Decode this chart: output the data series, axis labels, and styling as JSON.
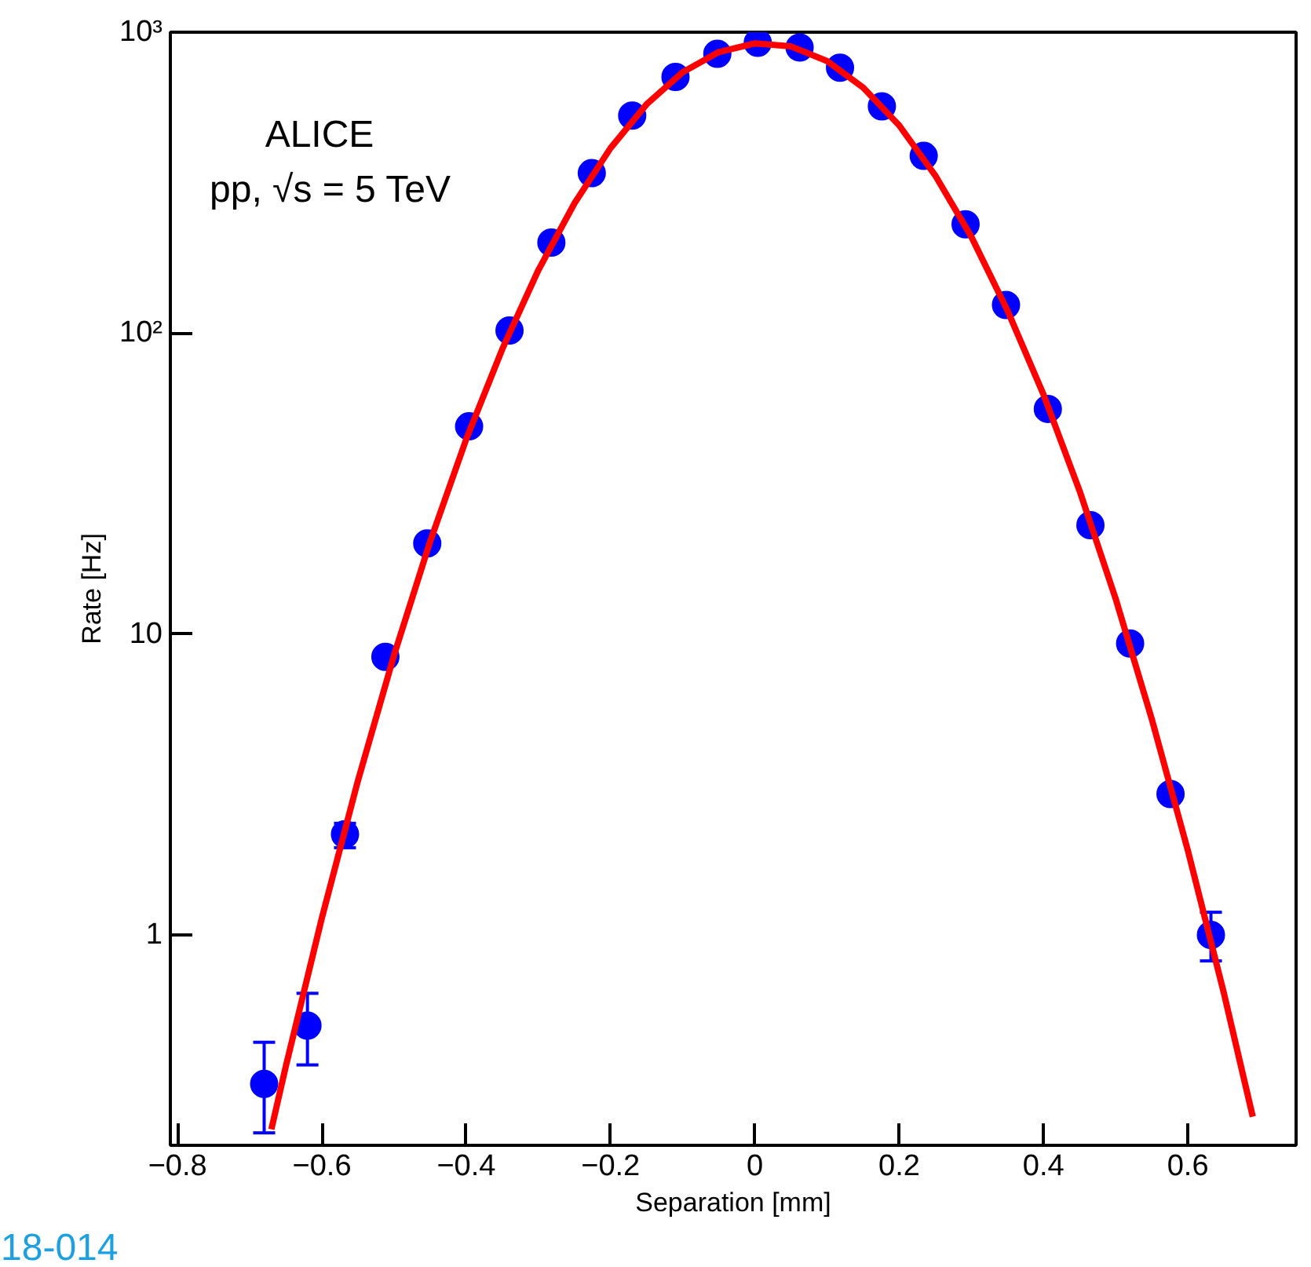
{
  "chart_data": {
    "type": "scatter",
    "xlabel": "Separation [mm]",
    "ylabel": "Rate [Hz]",
    "annotations": [
      "ALICE",
      "pp, √s = 5 TeV",
      "18-014"
    ],
    "log": "y",
    "grid": false,
    "xlim": [
      -0.81,
      0.75
    ],
    "ylim": [
      0.2,
      1000
    ],
    "xticks": [
      -0.8,
      -0.6,
      -0.4,
      -0.2,
      0,
      0.2,
      0.4,
      0.6
    ],
    "yticks": [
      {
        "value": 1,
        "label": "1"
      },
      {
        "value": 10,
        "label": "10"
      },
      {
        "value": 100,
        "label": "10²"
      },
      {
        "value": 1000,
        "label": "10³"
      }
    ],
    "series": [
      {
        "marker": "circle",
        "color": "#0000ff",
        "x": [
          -0.68,
          -0.62,
          -0.568,
          -0.512,
          -0.454,
          -0.396,
          -0.34,
          -0.282,
          -0.226,
          -0.17,
          -0.11,
          -0.052,
          0.004,
          0.062,
          0.118,
          0.176,
          0.234,
          0.292,
          0.348,
          0.406,
          0.465,
          0.52,
          0.576,
          0.632
        ],
        "values": [
          0.32,
          0.5,
          2.16,
          8.4,
          20,
          49,
          102,
          200,
          340,
          528,
          710,
          848,
          922,
          890,
          762,
          567,
          388,
          230,
          124,
          56,
          23,
          9.3,
          2.94,
          1.0
        ],
        "errors": [
          [
            0.22,
            0.44
          ],
          [
            0.37,
            0.64
          ],
          [
            1.95,
            2.35
          ],
          null,
          null,
          null,
          null,
          null,
          null,
          null,
          null,
          null,
          null,
          null,
          null,
          null,
          null,
          null,
          null,
          null,
          null,
          null,
          null,
          [
            0.82,
            1.19
          ]
        ]
      },
      {
        "type": "line",
        "color": "#ff0000",
        "x": [
          -0.67,
          -0.65,
          -0.6,
          -0.55,
          -0.5,
          -0.45,
          -0.4,
          -0.35,
          -0.3,
          -0.25,
          -0.2,
          -0.15,
          -0.1,
          -0.05,
          0,
          0.05,
          0.1,
          0.15,
          0.2,
          0.25,
          0.3,
          0.35,
          0.4,
          0.45,
          0.5,
          0.55,
          0.6,
          0.65,
          0.69
        ],
        "values": [
          0.226,
          0.366,
          1.14,
          3.26,
          8.51,
          20.3,
          44.4,
          88.5,
          162,
          270,
          412,
          576,
          736,
          859,
          918,
          897,
          802,
          655,
          490,
          334,
          209,
          119,
          62.5,
          29.9,
          13.1,
          5.22,
          1.91,
          0.64,
          0.249
        ]
      }
    ]
  }
}
